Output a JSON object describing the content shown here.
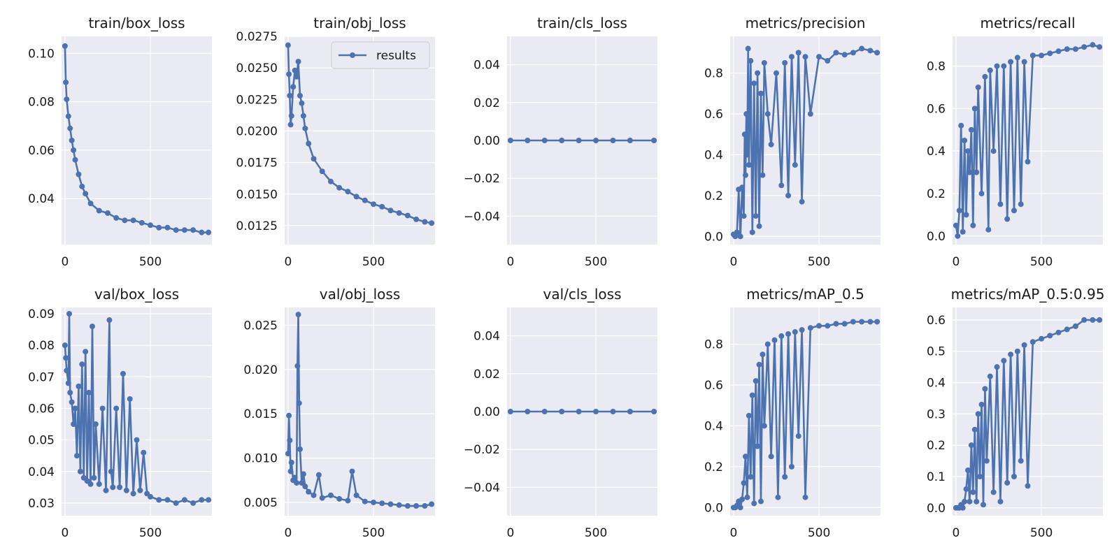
{
  "figure": {
    "legend_label": "results",
    "series_color": "#4c72b0",
    "axes_background": "#eaeaf2",
    "grid_color": "#ffffff"
  },
  "chart_data": [
    {
      "type": "line",
      "title": "train/box_loss",
      "xlim": [
        -20,
        860
      ],
      "ylim": [
        0.021,
        0.107
      ],
      "xticks": [
        0,
        500
      ],
      "xtick_labels": [
        "0",
        "500"
      ],
      "yticks": [
        0.04,
        0.06,
        0.08,
        0.1
      ],
      "ytick_labels": [
        "0.04",
        "0.06",
        "0.08",
        "0.10"
      ],
      "legend": false,
      "series": [
        {
          "name": "results",
          "x": [
            0,
            5,
            10,
            20,
            30,
            40,
            50,
            60,
            80,
            100,
            120,
            150,
            200,
            250,
            300,
            350,
            400,
            450,
            500,
            550,
            600,
            650,
            700,
            750,
            800,
            840
          ],
          "y": [
            0.103,
            0.088,
            0.081,
            0.074,
            0.069,
            0.064,
            0.06,
            0.056,
            0.05,
            0.045,
            0.042,
            0.038,
            0.035,
            0.034,
            0.032,
            0.031,
            0.031,
            0.03,
            0.029,
            0.028,
            0.028,
            0.027,
            0.027,
            0.027,
            0.026,
            0.026
          ]
        }
      ]
    },
    {
      "type": "line",
      "title": "train/obj_loss",
      "xlim": [
        -20,
        860
      ],
      "ylim": [
        0.011,
        0.0275
      ],
      "xticks": [
        0,
        500
      ],
      "xtick_labels": [
        "0",
        "500"
      ],
      "yticks": [
        0.0125,
        0.015,
        0.0175,
        0.02,
        0.0225,
        0.025,
        0.0275
      ],
      "ytick_labels": [
        "0.0125",
        "0.0150",
        "0.0175",
        "0.0200",
        "0.0225",
        "0.0250",
        "0.0275"
      ],
      "legend": true,
      "series": [
        {
          "name": "results",
          "x": [
            0,
            5,
            10,
            15,
            20,
            30,
            40,
            50,
            60,
            70,
            80,
            90,
            100,
            120,
            150,
            200,
            250,
            300,
            350,
            400,
            450,
            500,
            550,
            600,
            650,
            700,
            750,
            800,
            840
          ],
          "y": [
            0.0268,
            0.0245,
            0.0228,
            0.0205,
            0.0212,
            0.0235,
            0.0248,
            0.0243,
            0.0255,
            0.0228,
            0.0222,
            0.0212,
            0.0202,
            0.019,
            0.0178,
            0.0168,
            0.016,
            0.0155,
            0.0152,
            0.0148,
            0.0145,
            0.0142,
            0.014,
            0.0137,
            0.0135,
            0.0133,
            0.013,
            0.0128,
            0.0127
          ]
        }
      ]
    },
    {
      "type": "line",
      "title": "train/cls_loss",
      "xlim": [
        -20,
        860
      ],
      "ylim": [
        -0.055,
        0.055
      ],
      "xticks": [
        0,
        500
      ],
      "xtick_labels": [
        "0",
        "500"
      ],
      "yticks": [
        -0.04,
        -0.02,
        0.0,
        0.02,
        0.04
      ],
      "ytick_labels": [
        "−0.04",
        "−0.02",
        "0.00",
        "0.02",
        "0.04"
      ],
      "legend": false,
      "series": [
        {
          "name": "results",
          "x": [
            0,
            100,
            200,
            300,
            400,
            500,
            600,
            700,
            840
          ],
          "y": [
            0,
            0,
            0,
            0,
            0,
            0,
            0,
            0,
            0
          ]
        }
      ]
    },
    {
      "type": "line",
      "title": "metrics/precision",
      "xlim": [
        -20,
        860
      ],
      "ylim": [
        -0.04,
        0.98
      ],
      "xticks": [
        0,
        500
      ],
      "xtick_labels": [
        "0",
        "500"
      ],
      "yticks": [
        0.0,
        0.2,
        0.4,
        0.6,
        0.8
      ],
      "ytick_labels": [
        "0.0",
        "0.2",
        "0.4",
        "0.6",
        "0.8"
      ],
      "legend": false,
      "series": [
        {
          "name": "results",
          "x": [
            0,
            10,
            20,
            30,
            40,
            50,
            60,
            65,
            70,
            75,
            80,
            85,
            90,
            100,
            110,
            120,
            130,
            140,
            150,
            160,
            170,
            180,
            200,
            220,
            250,
            280,
            300,
            320,
            340,
            360,
            380,
            400,
            420,
            450,
            500,
            550,
            600,
            650,
            700,
            750,
            800,
            840
          ],
          "y": [
            0.01,
            0.0,
            0.02,
            0.23,
            0.0,
            0.24,
            0.1,
            0.5,
            0.3,
            0.6,
            0.4,
            0.92,
            0.35,
            0.86,
            0.02,
            0.75,
            0.1,
            0.8,
            0.05,
            0.7,
            0.3,
            0.85,
            0.6,
            0.45,
            0.8,
            0.25,
            0.85,
            0.2,
            0.88,
            0.35,
            0.9,
            0.17,
            0.88,
            0.6,
            0.88,
            0.86,
            0.9,
            0.89,
            0.9,
            0.92,
            0.91,
            0.9
          ]
        }
      ]
    },
    {
      "type": "line",
      "title": "metrics/recall",
      "xlim": [
        -20,
        860
      ],
      "ylim": [
        -0.04,
        0.94
      ],
      "xticks": [
        0,
        500
      ],
      "xtick_labels": [
        "0",
        "500"
      ],
      "yticks": [
        0.0,
        0.2,
        0.4,
        0.6,
        0.8
      ],
      "ytick_labels": [
        "0.0",
        "0.2",
        "0.4",
        "0.6",
        "0.8"
      ],
      "legend": false,
      "series": [
        {
          "name": "results",
          "x": [
            0,
            10,
            20,
            30,
            40,
            50,
            60,
            70,
            80,
            90,
            100,
            110,
            120,
            130,
            150,
            170,
            190,
            200,
            220,
            240,
            260,
            280,
            300,
            320,
            340,
            360,
            380,
            400,
            420,
            450,
            500,
            550,
            600,
            650,
            700,
            750,
            800,
            840
          ],
          "y": [
            0.05,
            0.0,
            0.12,
            0.52,
            0.02,
            0.45,
            0.1,
            0.4,
            0.3,
            0.5,
            0.05,
            0.6,
            0.3,
            0.7,
            0.2,
            0.75,
            0.03,
            0.78,
            0.4,
            0.8,
            0.15,
            0.8,
            0.08,
            0.82,
            0.12,
            0.84,
            0.15,
            0.82,
            0.35,
            0.85,
            0.85,
            0.86,
            0.87,
            0.88,
            0.88,
            0.89,
            0.9,
            0.89
          ]
        }
      ]
    },
    {
      "type": "line",
      "title": "val/box_loss",
      "xlim": [
        -20,
        860
      ],
      "ylim": [
        0.026,
        0.092
      ],
      "xticks": [
        0,
        500
      ],
      "xtick_labels": [
        "0",
        "500"
      ],
      "yticks": [
        0.03,
        0.04,
        0.05,
        0.06,
        0.07,
        0.08,
        0.09
      ],
      "ytick_labels": [
        "0.03",
        "0.04",
        "0.05",
        "0.06",
        "0.07",
        "0.08",
        "0.09"
      ],
      "legend": false,
      "series": [
        {
          "name": "results",
          "x": [
            0,
            5,
            10,
            20,
            25,
            30,
            40,
            50,
            60,
            70,
            80,
            90,
            100,
            110,
            120,
            130,
            140,
            150,
            160,
            170,
            180,
            200,
            220,
            240,
            260,
            270,
            280,
            300,
            320,
            340,
            360,
            380,
            400,
            420,
            440,
            460,
            480,
            500,
            550,
            600,
            650,
            700,
            750,
            800,
            840
          ],
          "y": [
            0.08,
            0.076,
            0.072,
            0.068,
            0.09,
            0.065,
            0.062,
            0.055,
            0.06,
            0.045,
            0.067,
            0.04,
            0.074,
            0.038,
            0.078,
            0.037,
            0.065,
            0.036,
            0.086,
            0.038,
            0.055,
            0.036,
            0.06,
            0.034,
            0.088,
            0.04,
            0.035,
            0.06,
            0.035,
            0.071,
            0.034,
            0.063,
            0.033,
            0.05,
            0.034,
            0.046,
            0.033,
            0.032,
            0.031,
            0.031,
            0.03,
            0.031,
            0.03,
            0.031,
            0.031
          ]
        }
      ]
    },
    {
      "type": "line",
      "title": "val/obj_loss",
      "xlim": [
        -20,
        860
      ],
      "ylim": [
        0.0035,
        0.027
      ],
      "xticks": [
        0,
        500
      ],
      "xtick_labels": [
        "0",
        "500"
      ],
      "yticks": [
        0.005,
        0.01,
        0.015,
        0.02,
        0.025
      ],
      "ytick_labels": [
        "0.005",
        "0.010",
        "0.015",
        "0.020",
        "0.025"
      ],
      "legend": false,
      "series": [
        {
          "name": "results",
          "x": [
            0,
            5,
            10,
            15,
            20,
            30,
            40,
            50,
            55,
            60,
            65,
            70,
            80,
            90,
            100,
            120,
            150,
            180,
            200,
            250,
            300,
            350,
            375,
            400,
            450,
            500,
            550,
            600,
            650,
            700,
            750,
            800,
            840
          ],
          "y": [
            0.0105,
            0.0148,
            0.012,
            0.0085,
            0.0095,
            0.0075,
            0.0078,
            0.0072,
            0.0204,
            0.0262,
            0.0162,
            0.011,
            0.0072,
            0.0082,
            0.0068,
            0.0062,
            0.0058,
            0.0081,
            0.0055,
            0.0058,
            0.0054,
            0.0052,
            0.0085,
            0.0058,
            0.0051,
            0.005,
            0.0049,
            0.0048,
            0.0047,
            0.0046,
            0.0046,
            0.0046,
            0.0048
          ]
        }
      ]
    },
    {
      "type": "line",
      "title": "val/cls_loss",
      "xlim": [
        -20,
        860
      ],
      "ylim": [
        -0.055,
        0.055
      ],
      "xticks": [
        0,
        500
      ],
      "xtick_labels": [
        "0",
        "500"
      ],
      "yticks": [
        -0.04,
        -0.02,
        0.0,
        0.02,
        0.04
      ],
      "ytick_labels": [
        "−0.04",
        "−0.02",
        "0.00",
        "0.02",
        "0.04"
      ],
      "legend": false,
      "series": [
        {
          "name": "results",
          "x": [
            0,
            100,
            200,
            300,
            400,
            500,
            600,
            700,
            840
          ],
          "y": [
            0,
            0,
            0,
            0,
            0,
            0,
            0,
            0,
            0
          ]
        }
      ]
    },
    {
      "type": "line",
      "title": "metrics/mAP_0.5",
      "xlim": [
        -20,
        860
      ],
      "ylim": [
        -0.04,
        0.98
      ],
      "xticks": [
        0,
        500
      ],
      "xtick_labels": [
        "0",
        "500"
      ],
      "yticks": [
        0.0,
        0.2,
        0.4,
        0.6,
        0.8
      ],
      "ytick_labels": [
        "0.0",
        "0.2",
        "0.4",
        "0.6",
        "0.8"
      ],
      "legend": false,
      "series": [
        {
          "name": "results",
          "x": [
            0,
            10,
            20,
            30,
            40,
            50,
            60,
            70,
            80,
            90,
            100,
            110,
            120,
            130,
            140,
            150,
            160,
            170,
            180,
            200,
            220,
            240,
            260,
            280,
            300,
            320,
            340,
            360,
            380,
            400,
            420,
            450,
            500,
            550,
            600,
            650,
            700,
            750,
            800,
            840
          ],
          "y": [
            0.0,
            0.0,
            0.01,
            0.03,
            0.0,
            0.04,
            0.12,
            0.25,
            0.05,
            0.45,
            0.15,
            0.55,
            0.02,
            0.62,
            0.3,
            0.7,
            0.03,
            0.75,
            0.4,
            0.8,
            0.25,
            0.82,
            0.05,
            0.84,
            0.15,
            0.85,
            0.2,
            0.86,
            0.35,
            0.87,
            0.05,
            0.88,
            0.89,
            0.89,
            0.9,
            0.9,
            0.91,
            0.91,
            0.91,
            0.91
          ]
        }
      ]
    },
    {
      "type": "line",
      "title": "metrics/mAP_0.5:0.95",
      "xlim": [
        -20,
        860
      ],
      "ylim": [
        -0.025,
        0.64
      ],
      "xticks": [
        0,
        500
      ],
      "xtick_labels": [
        "0",
        "500"
      ],
      "yticks": [
        0.0,
        0.1,
        0.2,
        0.3,
        0.4,
        0.5,
        0.6
      ],
      "ytick_labels": [
        "0.0",
        "0.1",
        "0.2",
        "0.3",
        "0.4",
        "0.5",
        "0.6"
      ],
      "legend": false,
      "series": [
        {
          "name": "results",
          "x": [
            0,
            10,
            20,
            30,
            40,
            50,
            60,
            70,
            80,
            90,
            100,
            110,
            120,
            130,
            140,
            150,
            160,
            170,
            180,
            200,
            220,
            240,
            260,
            280,
            300,
            320,
            340,
            360,
            380,
            400,
            420,
            450,
            500,
            550,
            600,
            650,
            700,
            750,
            800,
            840
          ],
          "y": [
            0.0,
            0.0,
            0.0,
            0.01,
            0.0,
            0.02,
            0.06,
            0.12,
            0.02,
            0.2,
            0.05,
            0.25,
            0.02,
            0.3,
            0.1,
            0.33,
            0.01,
            0.38,
            0.15,
            0.42,
            0.05,
            0.45,
            0.02,
            0.47,
            0.08,
            0.49,
            0.1,
            0.5,
            0.15,
            0.52,
            0.07,
            0.53,
            0.54,
            0.55,
            0.56,
            0.57,
            0.58,
            0.6,
            0.6,
            0.6
          ]
        }
      ]
    }
  ]
}
